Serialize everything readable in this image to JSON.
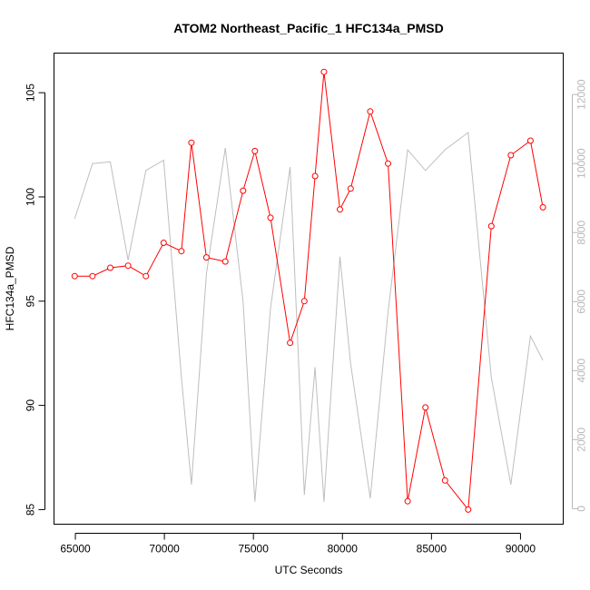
{
  "chart_data": {
    "type": "line",
    "title": "ATOM2 Northeast_Pacific_1 HFC134a_PMSD",
    "xlabel": "UTC Seconds",
    "ylabel": "HFC134a_PMSD",
    "xlim": [
      63800,
      92400
    ],
    "ylim": [
      84.3,
      106.9
    ],
    "y2lim": [
      -450,
      13200
    ],
    "x_ticks": [
      65000,
      70000,
      75000,
      80000,
      85000,
      90000
    ],
    "y_ticks": [
      85,
      90,
      95,
      100,
      105
    ],
    "y2_ticks": [
      0,
      2000,
      4000,
      6000,
      8000,
      10000,
      12000
    ],
    "grid": false,
    "series": [
      {
        "axis": "left",
        "color": "#ff0000",
        "markers": "open-circle",
        "x": [
          64960,
          65960,
          66960,
          67960,
          68960,
          69960,
          70960,
          71520,
          72360,
          73420,
          74420,
          75080,
          75960,
          77060,
          77860,
          78460,
          78960,
          79860,
          80460,
          81560,
          82560,
          83660,
          84660,
          85760,
          87060,
          88360,
          89460,
          90560,
          91260
        ],
        "y": [
          96.2,
          96.2,
          96.6,
          96.7,
          96.2,
          97.8,
          97.4,
          102.6,
          97.1,
          96.9,
          100.3,
          102.2,
          99.0,
          93.0,
          95.0,
          101.0,
          106.0,
          99.4,
          100.4,
          104.1,
          101.6,
          85.4,
          89.9,
          86.4,
          85.0,
          98.6,
          102.0,
          102.7,
          99.5
        ]
      },
      {
        "axis": "right",
        "color": "#bebebe",
        "markers": "none",
        "x": [
          64960,
          65960,
          66960,
          67960,
          68960,
          69960,
          70960,
          71520,
          72360,
          73420,
          74420,
          75080,
          75960,
          77060,
          77860,
          78460,
          78960,
          79860,
          80460,
          81560,
          82560,
          83660,
          84660,
          85760,
          87060,
          88360,
          89460,
          90560,
          91260
        ],
        "y": [
          8400,
          10000,
          10050,
          7200,
          9800,
          10100,
          3800,
          700,
          6800,
          10450,
          6000,
          200,
          5800,
          9900,
          400,
          4100,
          200,
          7300,
          4200,
          300,
          5700,
          10400,
          9800,
          10400,
          10900,
          3800,
          700,
          5000,
          4300
        ]
      }
    ]
  }
}
